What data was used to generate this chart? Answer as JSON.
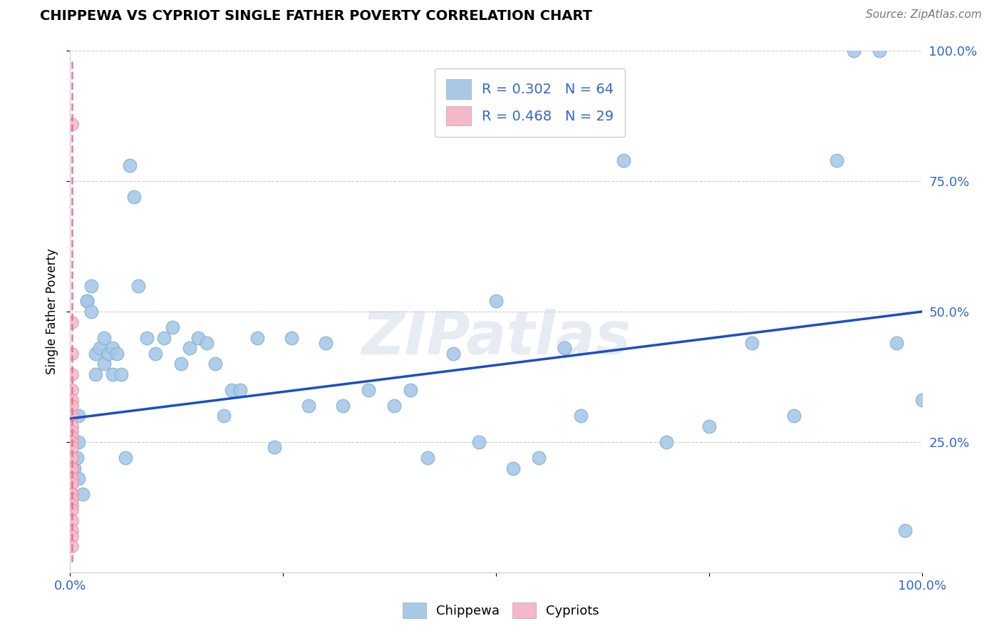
{
  "title": "CHIPPEWA VS CYPRIOT SINGLE FATHER POVERTY CORRELATION CHART",
  "source": "Source: ZipAtlas.com",
  "ylabel": "Single Father Poverty",
  "watermark": "ZIPatlas",
  "chippewa_R": 0.302,
  "chippewa_N": 64,
  "cypriot_R": 0.468,
  "cypriot_N": 29,
  "chippewa_color": "#a8c8e8",
  "chippewa_edge": "#7aaed0",
  "cypriot_color": "#f5b8c8",
  "cypriot_edge": "#e090a8",
  "trend_blue": "#1a4fc4",
  "trend_pink": "#e07090",
  "chippewa_x": [
    0.005,
    0.008,
    0.01,
    0.01,
    0.01,
    0.015,
    0.02,
    0.02,
    0.025,
    0.025,
    0.03,
    0.03,
    0.035,
    0.04,
    0.04,
    0.045,
    0.05,
    0.05,
    0.055,
    0.06,
    0.065,
    0.07,
    0.075,
    0.08,
    0.09,
    0.1,
    0.11,
    0.12,
    0.13,
    0.14,
    0.15,
    0.16,
    0.17,
    0.18,
    0.19,
    0.2,
    0.22,
    0.24,
    0.26,
    0.28,
    0.3,
    0.32,
    0.35,
    0.38,
    0.4,
    0.42,
    0.45,
    0.48,
    0.5,
    0.52,
    0.55,
    0.58,
    0.6,
    0.65,
    0.7,
    0.75,
    0.8,
    0.85,
    0.9,
    0.92,
    0.95,
    0.97,
    0.98,
    1.0
  ],
  "chippewa_y": [
    0.2,
    0.22,
    0.25,
    0.18,
    0.3,
    0.15,
    0.52,
    0.52,
    0.55,
    0.5,
    0.42,
    0.38,
    0.43,
    0.45,
    0.4,
    0.42,
    0.43,
    0.38,
    0.42,
    0.38,
    0.22,
    0.78,
    0.72,
    0.55,
    0.45,
    0.42,
    0.45,
    0.47,
    0.4,
    0.43,
    0.45,
    0.44,
    0.4,
    0.3,
    0.35,
    0.35,
    0.45,
    0.24,
    0.45,
    0.32,
    0.44,
    0.32,
    0.35,
    0.32,
    0.35,
    0.22,
    0.42,
    0.25,
    0.52,
    0.2,
    0.22,
    0.43,
    0.3,
    0.79,
    0.25,
    0.28,
    0.44,
    0.3,
    0.79,
    1.0,
    1.0,
    0.44,
    0.08,
    0.33
  ],
  "cypriot_x": [
    0.002,
    0.002,
    0.002,
    0.002,
    0.002,
    0.002,
    0.002,
    0.002,
    0.002,
    0.002,
    0.002,
    0.002,
    0.002,
    0.002,
    0.002,
    0.002,
    0.002,
    0.002,
    0.002,
    0.002,
    0.002,
    0.002,
    0.002,
    0.002,
    0.002,
    0.002,
    0.002,
    0.002,
    0.002
  ],
  "cypriot_y": [
    0.86,
    0.48,
    0.42,
    0.38,
    0.35,
    0.33,
    0.32,
    0.3,
    0.28,
    0.27,
    0.26,
    0.25,
    0.24,
    0.22,
    0.22,
    0.2,
    0.2,
    0.18,
    0.18,
    0.17,
    0.15,
    0.15,
    0.14,
    0.13,
    0.12,
    0.1,
    0.08,
    0.07,
    0.05
  ],
  "trend_blue_x0": 0.0,
  "trend_blue_y0": 0.295,
  "trend_blue_x1": 1.0,
  "trend_blue_y1": 0.5,
  "trend_pink_x0": 0.002,
  "trend_pink_y0": 0.02,
  "trend_pink_x1": 0.002,
  "trend_pink_y1": 0.98,
  "xlim": [
    0.0,
    1.0
  ],
  "ylim": [
    0.0,
    1.0
  ],
  "xticks": [
    0.0,
    0.25,
    0.5,
    0.75,
    1.0
  ],
  "xticklabels": [
    "0.0%",
    "",
    "",
    "",
    "100.0%"
  ],
  "ytick_positions": [
    0.25,
    0.5,
    0.75,
    1.0
  ],
  "yticklabels_right": [
    "25.0%",
    "50.0%",
    "75.0%",
    "100.0%"
  ],
  "grid_color": "#cccccc",
  "background_color": "#ffffff"
}
